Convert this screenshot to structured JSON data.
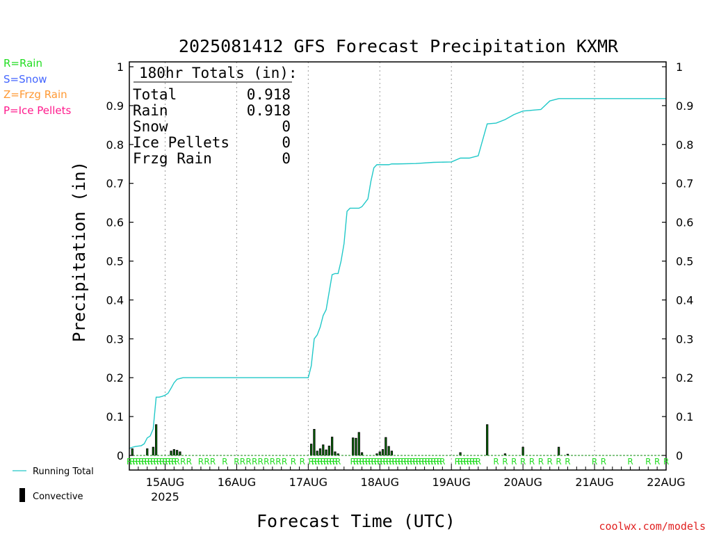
{
  "chart_data": {
    "type": "bar",
    "title": "2025081412 GFS Forecast Precipitation KXMR",
    "xlabel": "Forecast Time (UTC)",
    "ylabel": "Precipitation (in)",
    "credit": "coolwx.com/models",
    "ylim": [
      0,
      1
    ],
    "xlim_hours": [
      0,
      180
    ],
    "yticks": [
      "0",
      "0.1",
      "0.2",
      "0.3",
      "0.4",
      "0.5",
      "0.6",
      "0.7",
      "0.8",
      "0.9",
      "1"
    ],
    "date_ticks": [
      {
        "label": "15AUG",
        "hour": 12
      },
      {
        "label": "16AUG",
        "hour": 36
      },
      {
        "label": "17AUG",
        "hour": 60
      },
      {
        "label": "18AUG",
        "hour": 84
      },
      {
        "label": "19AUG",
        "hour": 108
      },
      {
        "label": "20AUG",
        "hour": 132
      },
      {
        "label": "21AUG",
        "hour": 156
      },
      {
        "label": "22AUG",
        "hour": 180
      }
    ],
    "year_label": "2025",
    "legend_types": [
      {
        "label": "R=Rain",
        "color": "#22dd22"
      },
      {
        "label": "S=Snow",
        "color": "#4466ff"
      },
      {
        "label": "Z=Frzg Rain",
        "color": "#ff9933"
      },
      {
        "label": "P=Ice Pellets",
        "color": "#ff1a8c"
      }
    ],
    "legend_series": [
      {
        "label": "Running Total",
        "color": "#20c8c8",
        "kind": "line"
      },
      {
        "label": "Convective",
        "color": "#000000",
        "kind": "bar"
      }
    ],
    "totals": {
      "header": "180hr Totals (in):",
      "rows": [
        {
          "label": "Total",
          "value": "0.918"
        },
        {
          "label": "Rain",
          "value": "0.918"
        },
        {
          "label": "Snow",
          "value": "0"
        },
        {
          "label": "Ice Pellets",
          "value": "0"
        },
        {
          "label": "Frzg Rain",
          "value": "0"
        }
      ]
    },
    "running_total": {
      "name": "Running Total",
      "x_hours": [
        0,
        1,
        2,
        3,
        4,
        5,
        6,
        7,
        8,
        9,
        10,
        11,
        12,
        13,
        14,
        15,
        16,
        17,
        18,
        19,
        20,
        21,
        22,
        23,
        24,
        50,
        60,
        61,
        62,
        63,
        64,
        65,
        66,
        67,
        68,
        69,
        70,
        71,
        72,
        73,
        74,
        75,
        76,
        77,
        78,
        79,
        80,
        81,
        82,
        83,
        84,
        85,
        86,
        87,
        88,
        89,
        90,
        96,
        102,
        108,
        111,
        114,
        117,
        120,
        123,
        126,
        129,
        132,
        135,
        138,
        141,
        144,
        147,
        150,
        156,
        168,
        180
      ],
      "y": [
        0.018,
        0.021,
        0.023,
        0.024,
        0.025,
        0.03,
        0.045,
        0.05,
        0.068,
        0.15,
        0.15,
        0.152,
        0.155,
        0.16,
        0.173,
        0.187,
        0.196,
        0.198,
        0.2,
        0.2,
        0.2,
        0.2,
        0.2,
        0.2,
        0.2,
        0.2,
        0.2,
        0.23,
        0.3,
        0.31,
        0.33,
        0.36,
        0.375,
        0.42,
        0.465,
        0.468,
        0.468,
        0.5,
        0.545,
        0.628,
        0.636,
        0.636,
        0.636,
        0.636,
        0.64,
        0.65,
        0.66,
        0.705,
        0.74,
        0.748,
        0.748,
        0.748,
        0.748,
        0.748,
        0.75,
        0.75,
        0.75,
        0.751,
        0.754,
        0.755,
        0.765,
        0.765,
        0.771,
        0.853,
        0.855,
        0.864,
        0.877,
        0.886,
        0.888,
        0.89,
        0.912,
        0.918,
        0.918,
        0.918,
        0.918,
        0.918,
        0.918
      ]
    },
    "convective": {
      "name": "Convective",
      "x_hours": [
        1,
        6,
        8,
        9,
        14,
        15,
        16,
        17,
        61,
        62,
        63,
        64,
        65,
        66,
        67,
        68,
        69,
        70,
        75,
        76,
        77,
        78,
        83,
        84,
        85,
        86,
        87,
        88,
        111,
        120,
        126,
        132,
        144,
        147
      ],
      "values": [
        0.018,
        0.018,
        0.022,
        0.08,
        0.012,
        0.016,
        0.014,
        0.01,
        0.03,
        0.068,
        0.012,
        0.018,
        0.028,
        0.015,
        0.025,
        0.048,
        0.01,
        0.005,
        0.046,
        0.045,
        0.06,
        0.008,
        0.005,
        0.01,
        0.016,
        0.047,
        0.024,
        0.012,
        0.008,
        0.08,
        0.005,
        0.022,
        0.022,
        0.004
      ]
    },
    "precip_type_row": {
      "letter": "R",
      "color": "#22dd22",
      "dense_hour_ranges": [
        [
          0,
          15
        ],
        [
          61,
          70
        ],
        [
          75,
          82
        ],
        [
          83,
          91
        ],
        [
          92,
          102
        ],
        [
          102,
          105
        ],
        [
          110,
          117
        ]
      ],
      "single_hours": [
        16,
        18,
        20,
        24,
        26,
        28,
        32,
        36,
        38,
        40,
        42,
        44,
        46,
        48,
        50,
        52,
        55,
        58,
        123,
        126,
        129,
        132,
        135,
        138,
        141,
        144,
        147,
        156,
        159,
        168,
        174,
        177,
        180
      ]
    }
  }
}
